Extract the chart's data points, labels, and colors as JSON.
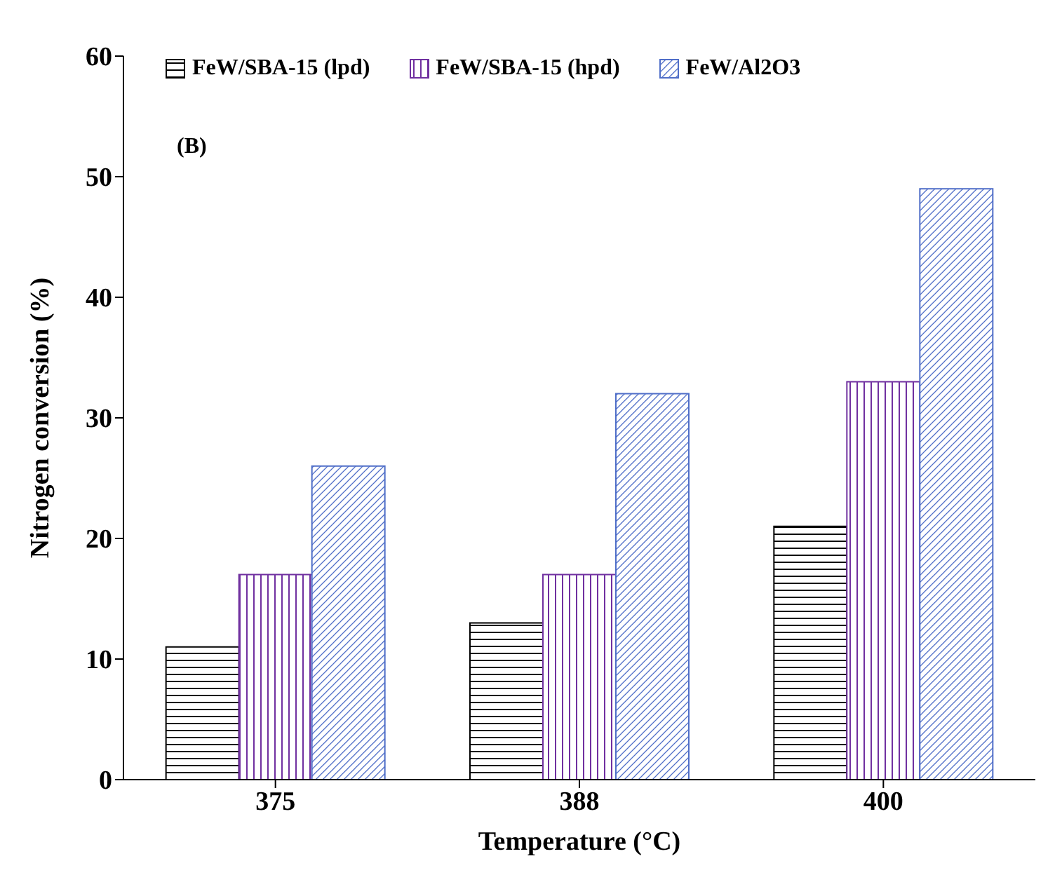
{
  "chart_data": {
    "type": "bar",
    "xlabel": "Temperature (°C)",
    "ylabel": "Nitrogen conversion (%)",
    "categories": [
      "375",
      "388",
      "400"
    ],
    "series": [
      {
        "name": "FeW/SBA-15 (lpd)",
        "color": "#000000",
        "values": [
          11,
          13,
          21
        ]
      },
      {
        "name": "FeW/SBA-15 (hpd)",
        "color": "#7030a0",
        "values": [
          17,
          17,
          33
        ]
      },
      {
        "name": "FeW/Al2O3",
        "color": "#4f6ec8",
        "values": [
          26,
          32,
          49
        ]
      }
    ],
    "ylim": [
      0,
      60
    ],
    "yticks": [
      0,
      10,
      20,
      30,
      40,
      50,
      60
    ],
    "grid": false,
    "legend": "top",
    "annotations": [
      "(B)"
    ]
  }
}
